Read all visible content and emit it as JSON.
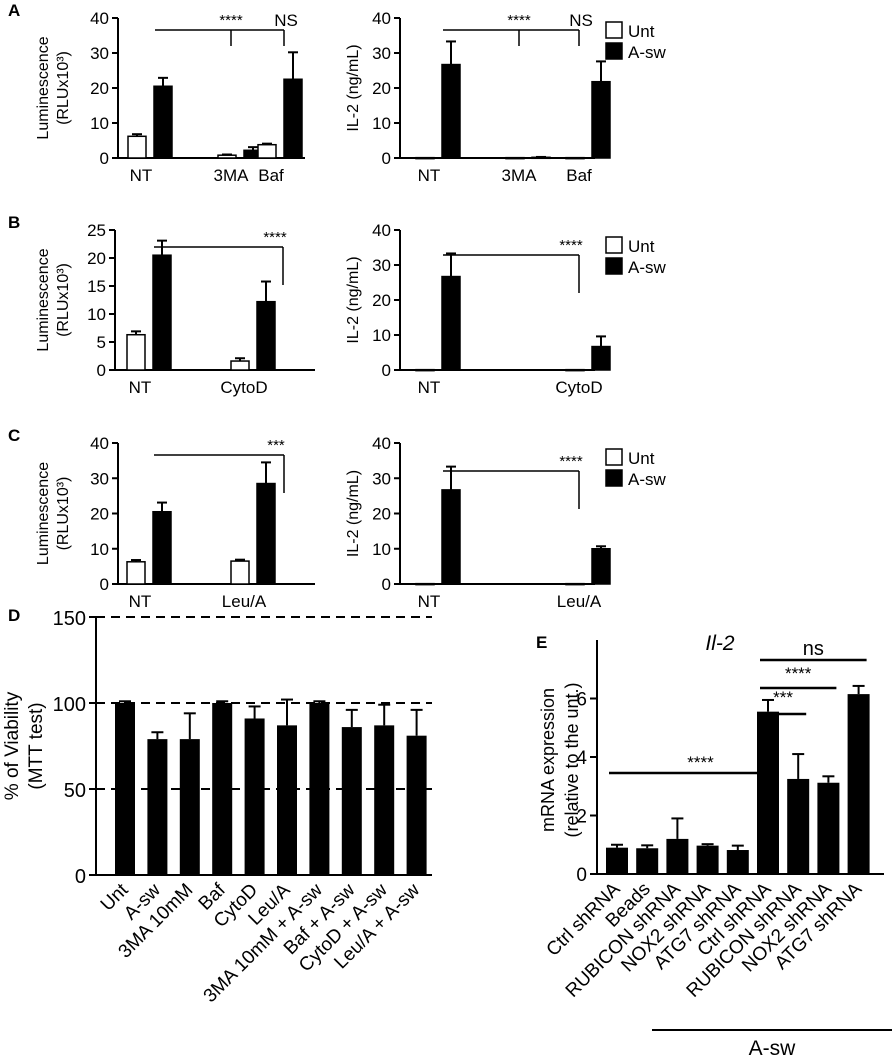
{
  "legend": {
    "unt": "Unt",
    "asw": "A-sw"
  },
  "chart_data": [
    {
      "id": "A1",
      "panel_label": "A",
      "type": "bar",
      "ylabel_lines": [
        "Luminescence",
        "(RLUx10³)"
      ],
      "ylim": [
        0,
        40
      ],
      "yticks": [
        0,
        10,
        20,
        30,
        40
      ],
      "categories": [
        "NT",
        "3MA",
        "Baf"
      ],
      "series": [
        {
          "name": "Unt",
          "values": [
            6.2,
            0.8,
            3.8
          ],
          "errors": [
            0.6,
            0.2,
            0.3
          ]
        },
        {
          "name": "A-sw",
          "values": [
            20.5,
            2.2,
            22.5
          ],
          "errors": [
            2.4,
            0.9,
            7.7
          ]
        }
      ],
      "annotations": [
        {
          "label": "****",
          "from_category": 0,
          "to_category": 1
        },
        {
          "label": "NS",
          "from_category": 0,
          "to_category": 2
        }
      ]
    },
    {
      "id": "A2",
      "panel_label": "",
      "type": "bar",
      "ylabel_lines": [
        "IL-2 (ng/mL)"
      ],
      "ylim": [
        0,
        40
      ],
      "yticks": [
        0,
        10,
        20,
        30,
        40
      ],
      "categories": [
        "NT",
        "3MA",
        "Baf"
      ],
      "series": [
        {
          "name": "Unt",
          "values": [
            0.1,
            0.1,
            0.1
          ],
          "errors": [
            0,
            0,
            0
          ]
        },
        {
          "name": "A-sw",
          "values": [
            26.7,
            0.2,
            21.8
          ],
          "errors": [
            6.6,
            0.1,
            5.8
          ]
        }
      ],
      "annotations": [
        {
          "label": "****",
          "from_category": 0,
          "to_category": 1
        },
        {
          "label": "NS",
          "from_category": 0,
          "to_category": 2
        }
      ]
    },
    {
      "id": "B1",
      "panel_label": "B",
      "type": "bar",
      "ylabel_lines": [
        "Luminescence",
        "(RLUx10³)"
      ],
      "ylim": [
        0,
        25
      ],
      "yticks": [
        0,
        5,
        10,
        15,
        20,
        25
      ],
      "categories": [
        "NT",
        "CytoD"
      ],
      "series": [
        {
          "name": "Unt",
          "values": [
            6.3,
            1.6
          ],
          "errors": [
            0.6,
            0.5
          ]
        },
        {
          "name": "A-sw",
          "values": [
            20.5,
            12.2
          ],
          "errors": [
            2.6,
            3.6
          ]
        }
      ],
      "annotations": [
        {
          "label": "****",
          "from_category": 0,
          "to_category": 1
        }
      ]
    },
    {
      "id": "B2",
      "panel_label": "",
      "type": "bar",
      "ylabel_lines": [
        "IL-2 (ng/mL)"
      ],
      "ylim": [
        0,
        40
      ],
      "yticks": [
        0,
        10,
        20,
        30,
        40
      ],
      "categories": [
        "NT",
        "CytoD"
      ],
      "series": [
        {
          "name": "Unt",
          "values": [
            0.1,
            0.1
          ],
          "errors": [
            0,
            0
          ]
        },
        {
          "name": "A-sw",
          "values": [
            26.7,
            6.7
          ],
          "errors": [
            6.6,
            2.9
          ]
        }
      ],
      "annotations": [
        {
          "label": "****",
          "from_category": 0,
          "to_category": 1
        }
      ]
    },
    {
      "id": "C1",
      "panel_label": "C",
      "type": "bar",
      "ylabel_lines": [
        "Luminescence",
        "(RLUx10³)"
      ],
      "ylim": [
        0,
        40
      ],
      "yticks": [
        0,
        10,
        20,
        30,
        40
      ],
      "categories": [
        "NT",
        "Leu/A"
      ],
      "series": [
        {
          "name": "Unt",
          "values": [
            6.3,
            6.5
          ],
          "errors": [
            0.5,
            0.4
          ]
        },
        {
          "name": "A-sw",
          "values": [
            20.5,
            28.5
          ],
          "errors": [
            2.6,
            6.0
          ]
        }
      ],
      "annotations": [
        {
          "label": "***",
          "from_category": 0,
          "to_category": 1
        }
      ]
    },
    {
      "id": "C2",
      "panel_label": "",
      "type": "bar",
      "ylabel_lines": [
        "IL-2 (ng/mL)"
      ],
      "ylim": [
        0,
        40
      ],
      "yticks": [
        0,
        10,
        20,
        30,
        40
      ],
      "categories": [
        "NT",
        "Leu/A"
      ],
      "series": [
        {
          "name": "Unt",
          "values": [
            0.1,
            0.1
          ],
          "errors": [
            0,
            0
          ]
        },
        {
          "name": "A-sw",
          "values": [
            26.7,
            10.0
          ],
          "errors": [
            6.6,
            0.7
          ]
        }
      ],
      "annotations": [
        {
          "label": "****",
          "from_category": 0,
          "to_category": 1
        }
      ]
    },
    {
      "id": "D",
      "panel_label": "D",
      "type": "bar",
      "ylabel_lines": [
        "% of Viability",
        "(MTT test)"
      ],
      "ylim": [
        0,
        150
      ],
      "yticks": [
        0,
        50,
        100,
        150
      ],
      "reference_lines": [
        50,
        100,
        150
      ],
      "categories": [
        "Unt",
        "A-sw",
        "3MA 10mM",
        "Baf",
        "CytoD",
        "Leu/A",
        "3MA 10mM + A-sw",
        "Baf + A-sw",
        "CytoD + A-sw",
        "Leu/A + A-sw"
      ],
      "series": [
        {
          "name": "Viability",
          "values": [
            100,
            79,
            79,
            100,
            91,
            87,
            100,
            86,
            87,
            81
          ],
          "errors": [
            1,
            4,
            15,
            1,
            7,
            15,
            1,
            10,
            12,
            15
          ]
        }
      ]
    },
    {
      "id": "E",
      "panel_label": "E",
      "type": "bar",
      "title": "Il-2",
      "ylabel_lines": [
        "mRNA expression",
        "(relative to the unt.)"
      ],
      "ylim": [
        0,
        8
      ],
      "yticks": [
        0,
        2,
        4,
        6
      ],
      "categories": [
        "Ctrl shRNA",
        "Beads",
        "RUBICON shRNA",
        "NOX2 shRNA",
        "ATG7 shRNA",
        "Ctrl shRNA",
        "RUBICON shRNA",
        "NOX2 shRNA",
        "ATG7 shRNA"
      ],
      "series": [
        {
          "name": "mRNA",
          "values": [
            0.9,
            0.88,
            1.2,
            0.97,
            0.82,
            5.55,
            3.25,
            3.12,
            6.15
          ],
          "errors": [
            0.1,
            0.1,
            0.7,
            0.05,
            0.15,
            0.4,
            0.85,
            0.22,
            0.28
          ]
        }
      ],
      "group_label": "A-sw",
      "annotations": [
        {
          "label": "****",
          "from_index": 0,
          "to_index": 5
        },
        {
          "label": "***",
          "from_index": 5,
          "to_index": 6
        },
        {
          "label": "****",
          "from_index": 5,
          "to_index": 7
        },
        {
          "label": "ns",
          "from_index": 5,
          "to_index": 8
        }
      ]
    }
  ]
}
